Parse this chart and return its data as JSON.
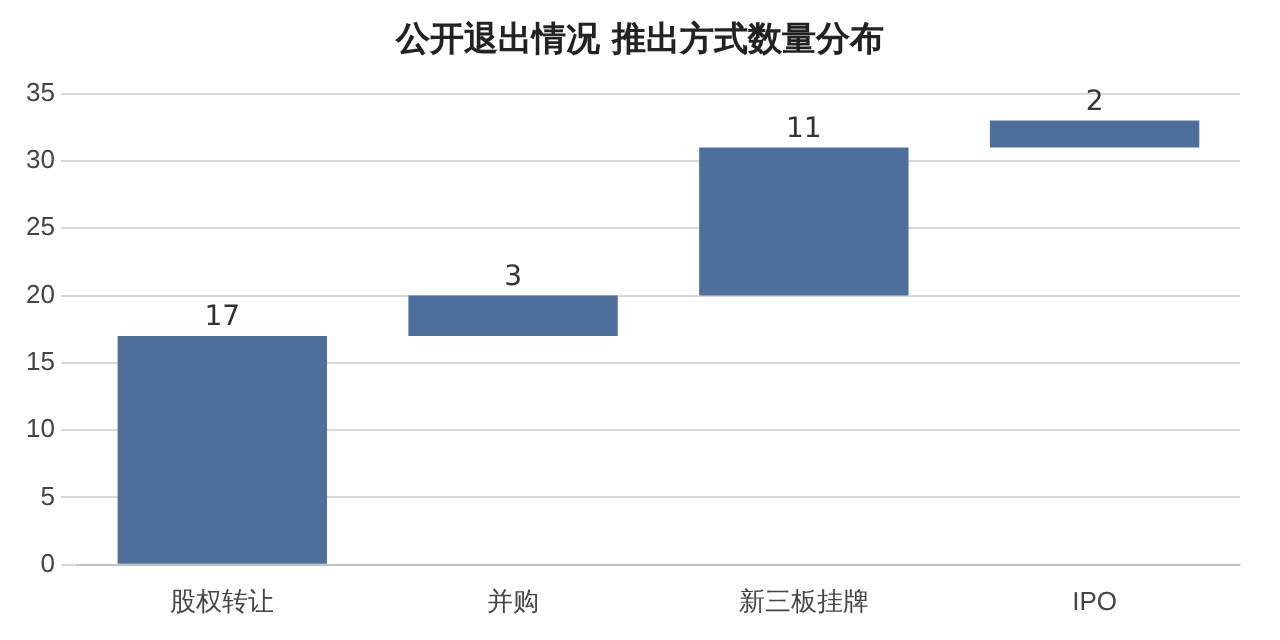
{
  "chart_data": {
    "type": "bar",
    "title": "公开退出情况 推出方式数量分布",
    "categories": [
      "股权转让",
      "并购",
      "新三板挂牌",
      "IPO"
    ],
    "values": [
      17,
      3,
      11,
      2
    ],
    "base": [
      0,
      17,
      20,
      31
    ],
    "color": "#4e6f9c",
    "ylim": [
      0,
      35
    ],
    "yticks": [
      0,
      5,
      10,
      15,
      20,
      25,
      30,
      35
    ],
    "grid": "y",
    "data_labels": true,
    "legend": false
  }
}
